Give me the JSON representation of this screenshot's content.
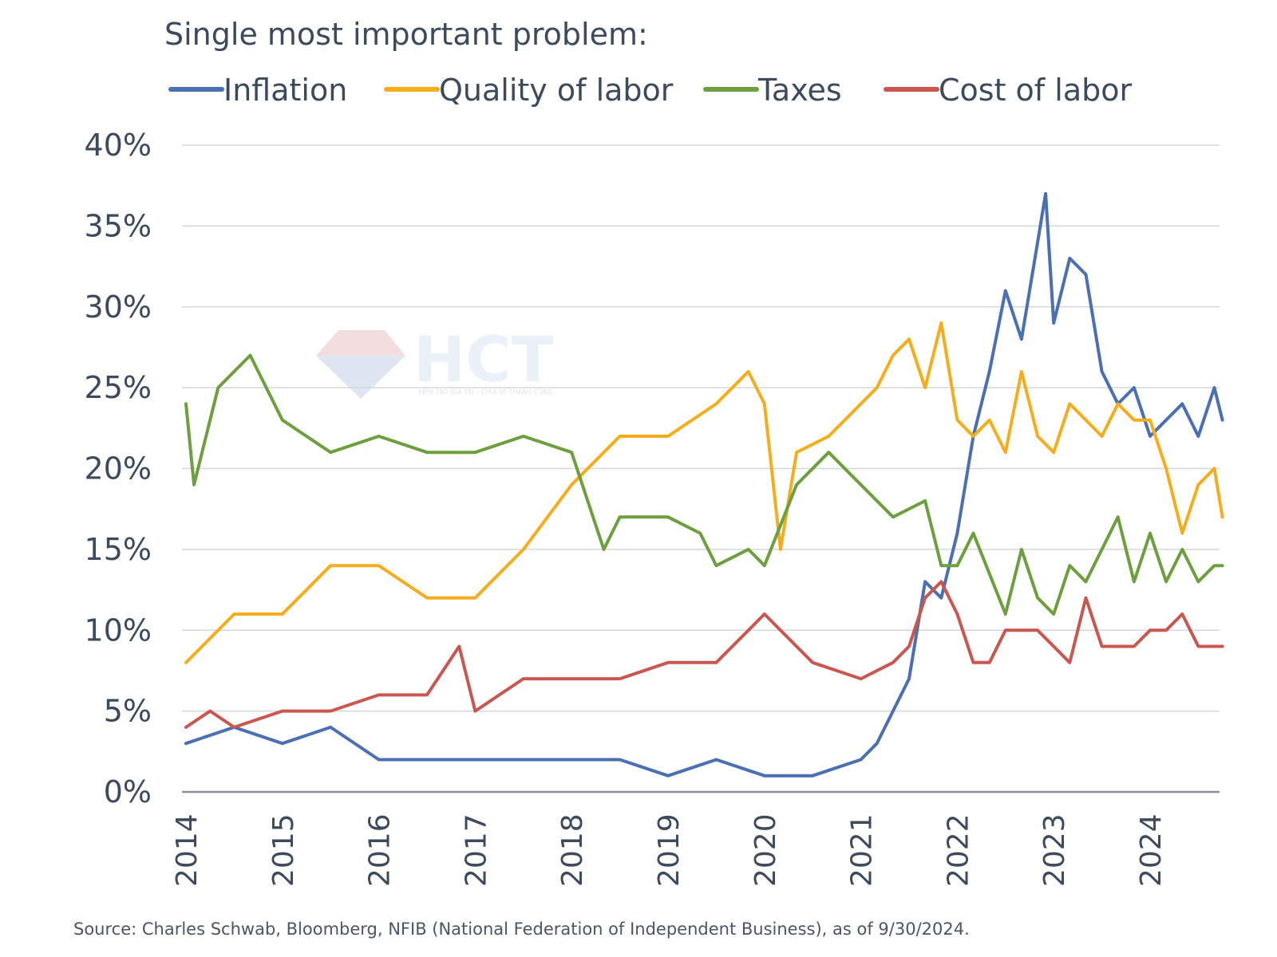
{
  "chart_data": {
    "type": "line",
    "title": "Single most important problem:",
    "xlabel": "",
    "ylabel": "",
    "ylim": [
      0,
      40
    ],
    "yticks": [
      "0%",
      "5%",
      "10%",
      "15%",
      "20%",
      "25%",
      "30%",
      "35%",
      "40%"
    ],
    "xticks": [
      "2014",
      "2015",
      "2016",
      "2017",
      "2018",
      "2019",
      "2020",
      "2021",
      "2022",
      "2023",
      "2024"
    ],
    "x_start": "2014-01",
    "x_end": "2024-09",
    "grid": true,
    "legend_position": "top",
    "series": [
      {
        "name": "Inflation",
        "color": "#4a6fb3",
        "points": [
          [
            0,
            3
          ],
          [
            6,
            4
          ],
          [
            12,
            3
          ],
          [
            18,
            4
          ],
          [
            24,
            2
          ],
          [
            30,
            2
          ],
          [
            36,
            2
          ],
          [
            42,
            2
          ],
          [
            48,
            2
          ],
          [
            54,
            2
          ],
          [
            60,
            1
          ],
          [
            66,
            2
          ],
          [
            72,
            1
          ],
          [
            78,
            1
          ],
          [
            84,
            2
          ],
          [
            86,
            3
          ],
          [
            88,
            5
          ],
          [
            90,
            7
          ],
          [
            92,
            13
          ],
          [
            94,
            12
          ],
          [
            96,
            16
          ],
          [
            98,
            22
          ],
          [
            100,
            26
          ],
          [
            102,
            31
          ],
          [
            104,
            28
          ],
          [
            106,
            34
          ],
          [
            107,
            37
          ],
          [
            108,
            29
          ],
          [
            110,
            33
          ],
          [
            112,
            32
          ],
          [
            114,
            26
          ],
          [
            116,
            24
          ],
          [
            118,
            25
          ],
          [
            120,
            22
          ],
          [
            122,
            23
          ],
          [
            124,
            24
          ],
          [
            126,
            22
          ],
          [
            128,
            25
          ],
          [
            129,
            23
          ]
        ]
      },
      {
        "name": "Quality of labor",
        "color": "#f5ad1b",
        "points": [
          [
            0,
            8
          ],
          [
            6,
            11
          ],
          [
            12,
            11
          ],
          [
            18,
            14
          ],
          [
            24,
            14
          ],
          [
            30,
            12
          ],
          [
            36,
            12
          ],
          [
            42,
            15
          ],
          [
            48,
            19
          ],
          [
            54,
            22
          ],
          [
            60,
            22
          ],
          [
            66,
            24
          ],
          [
            70,
            26
          ],
          [
            72,
            24
          ],
          [
            74,
            15
          ],
          [
            76,
            21
          ],
          [
            80,
            22
          ],
          [
            84,
            24
          ],
          [
            86,
            25
          ],
          [
            88,
            27
          ],
          [
            90,
            28
          ],
          [
            92,
            25
          ],
          [
            94,
            29
          ],
          [
            96,
            23
          ],
          [
            98,
            22
          ],
          [
            100,
            23
          ],
          [
            102,
            21
          ],
          [
            104,
            26
          ],
          [
            106,
            22
          ],
          [
            108,
            21
          ],
          [
            110,
            24
          ],
          [
            112,
            23
          ],
          [
            114,
            22
          ],
          [
            116,
            24
          ],
          [
            118,
            23
          ],
          [
            120,
            23
          ],
          [
            122,
            20
          ],
          [
            124,
            16
          ],
          [
            126,
            19
          ],
          [
            128,
            20
          ],
          [
            129,
            17
          ]
        ]
      },
      {
        "name": "Taxes",
        "color": "#6e9f3e",
        "points": [
          [
            0,
            24
          ],
          [
            1,
            19
          ],
          [
            4,
            25
          ],
          [
            8,
            27
          ],
          [
            12,
            23
          ],
          [
            18,
            21
          ],
          [
            24,
            22
          ],
          [
            30,
            21
          ],
          [
            36,
            21
          ],
          [
            42,
            22
          ],
          [
            48,
            21
          ],
          [
            52,
            15
          ],
          [
            54,
            17
          ],
          [
            60,
            17
          ],
          [
            64,
            16
          ],
          [
            66,
            14
          ],
          [
            70,
            15
          ],
          [
            72,
            14
          ],
          [
            76,
            19
          ],
          [
            80,
            21
          ],
          [
            84,
            19
          ],
          [
            88,
            17
          ],
          [
            92,
            18
          ],
          [
            94,
            14
          ],
          [
            96,
            14
          ],
          [
            98,
            16
          ],
          [
            102,
            11
          ],
          [
            104,
            15
          ],
          [
            106,
            12
          ],
          [
            108,
            11
          ],
          [
            110,
            14
          ],
          [
            112,
            13
          ],
          [
            114,
            15
          ],
          [
            116,
            17
          ],
          [
            118,
            13
          ],
          [
            120,
            16
          ],
          [
            122,
            13
          ],
          [
            124,
            15
          ],
          [
            126,
            13
          ],
          [
            128,
            14
          ],
          [
            129,
            14
          ]
        ]
      },
      {
        "name": "Cost of labor",
        "color": "#c9574f",
        "points": [
          [
            0,
            4
          ],
          [
            3,
            5
          ],
          [
            6,
            4
          ],
          [
            12,
            5
          ],
          [
            18,
            5
          ],
          [
            24,
            6
          ],
          [
            30,
            6
          ],
          [
            34,
            9
          ],
          [
            36,
            5
          ],
          [
            42,
            7
          ],
          [
            48,
            7
          ],
          [
            54,
            7
          ],
          [
            60,
            8
          ],
          [
            66,
            8
          ],
          [
            70,
            10
          ],
          [
            72,
            11
          ],
          [
            78,
            8
          ],
          [
            84,
            7
          ],
          [
            88,
            8
          ],
          [
            90,
            9
          ],
          [
            92,
            12
          ],
          [
            94,
            13
          ],
          [
            96,
            11
          ],
          [
            98,
            8
          ],
          [
            100,
            8
          ],
          [
            102,
            10
          ],
          [
            104,
            10
          ],
          [
            106,
            10
          ],
          [
            108,
            9
          ],
          [
            110,
            8
          ],
          [
            112,
            12
          ],
          [
            114,
            9
          ],
          [
            116,
            9
          ],
          [
            118,
            9
          ],
          [
            120,
            10
          ],
          [
            122,
            10
          ],
          [
            124,
            11
          ],
          [
            126,
            9
          ],
          [
            128,
            9
          ],
          [
            129,
            9
          ]
        ]
      }
    ],
    "source": "Source: Charles Schwab, Bloomberg, NFIB (National Federation of Independent Business), as of 9/30/2024."
  },
  "watermark": {
    "brand": "HCT",
    "tagline": "KIẾN TẠO GIÁ TRỊ – CHIA SẺ THÀNH CÔNG"
  }
}
